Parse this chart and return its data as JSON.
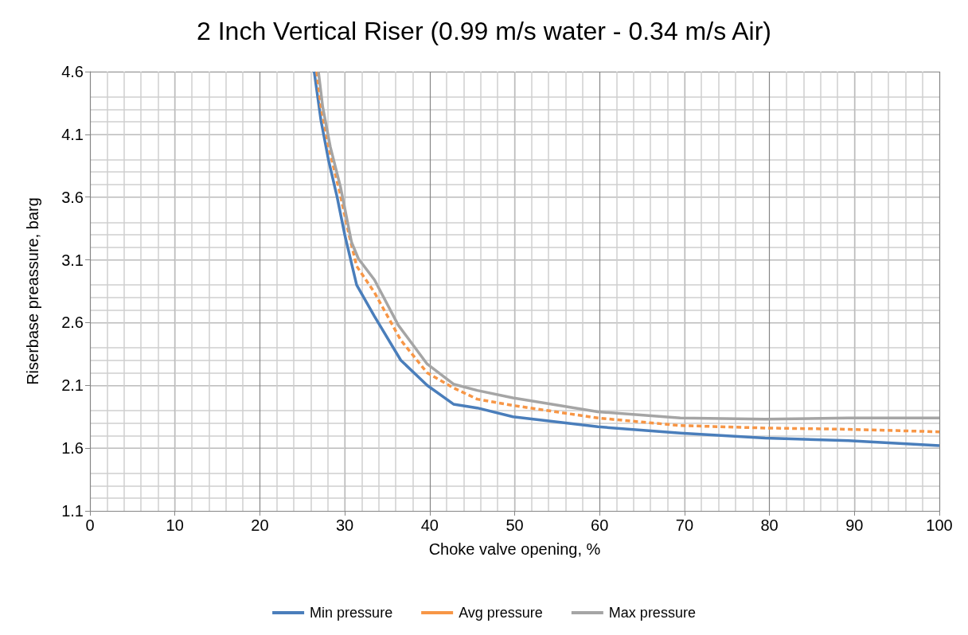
{
  "chart_data": {
    "type": "line",
    "title": "2 Inch Vertical Riser (0.99 m/s water - 0.34 m/s Air)",
    "xlabel": "Choke valve opening, %",
    "ylabel": "Riserbase preassure, barg",
    "xlim": [
      0,
      100
    ],
    "xticks": [
      0,
      10,
      20,
      30,
      40,
      50,
      60,
      70,
      80,
      90,
      100
    ],
    "ylim": [
      1.1,
      4.6
    ],
    "yticks": [
      1.1,
      1.6,
      2.1,
      2.6,
      3.1,
      3.6,
      4.1,
      4.6
    ],
    "grid": true,
    "legend": "bottom",
    "marker": "none",
    "series": [
      {
        "name": "Min pressure",
        "color": "#4a7ebb",
        "line_style": "solid",
        "x": [
          26.4,
          27.2,
          28.1,
          29.1,
          30.0,
          31.4,
          33.5,
          36.6,
          39.7,
          42.8,
          45.6,
          49.8,
          59.8,
          69.5,
          79.5,
          89.3,
          100
        ],
        "values": [
          4.6,
          4.21,
          3.89,
          3.6,
          3.3,
          2.9,
          2.65,
          2.3,
          2.1,
          1.95,
          1.92,
          1.85,
          1.77,
          1.72,
          1.68,
          1.66,
          1.62
        ]
      },
      {
        "name": "Avg pressure",
        "color": "#f79646",
        "line_style": "dashed",
        "x": [
          26.7,
          27.2,
          28.1,
          29.4,
          30.5,
          31.4,
          33.5,
          36.6,
          39.7,
          42.8,
          45.6,
          49.8,
          59.8,
          69.5,
          79.5,
          89.3,
          100
        ],
        "values": [
          4.6,
          4.32,
          4.0,
          3.64,
          3.3,
          3.05,
          2.84,
          2.46,
          2.2,
          2.08,
          1.99,
          1.94,
          1.84,
          1.78,
          1.76,
          1.75,
          1.73
        ]
      },
      {
        "name": "Max pressure",
        "color": "#a5a5a5",
        "line_style": "solid",
        "x": [
          26.9,
          27.4,
          28.3,
          29.5,
          30.8,
          31.6,
          33.5,
          36.3,
          39.7,
          42.8,
          45.6,
          49.8,
          59.8,
          69.5,
          79.5,
          89.3,
          100
        ],
        "values": [
          4.6,
          4.32,
          4.0,
          3.68,
          3.24,
          3.11,
          2.94,
          2.58,
          2.27,
          2.11,
          2.06,
          2.0,
          1.89,
          1.84,
          1.83,
          1.84,
          1.84
        ]
      }
    ]
  }
}
